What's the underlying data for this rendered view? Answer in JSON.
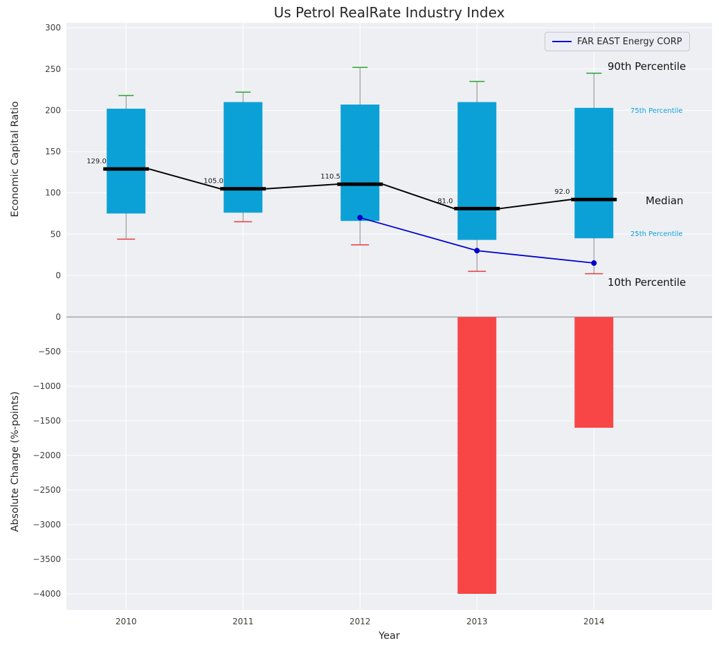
{
  "figure": {
    "plot_bg": "#edeff3",
    "grid_color": "#ffffff",
    "tick_color": "#3b3b3b"
  },
  "legend": {
    "label": "FAR EAST Energy CORP",
    "line_color": "#0000cc"
  },
  "annotations": {
    "p90": "90th Percentile",
    "p75": "75th Percentile",
    "median": "Median",
    "p25": "25th Percentile",
    "p10": "10th Percentile"
  },
  "chart_data": [
    {
      "type": "boxplot",
      "title": "Us Petrol RealRate Industry Index",
      "ylabel": "Economic Capital Ratio",
      "ylim": [
        -42,
        306
      ],
      "yticks": [
        300,
        250,
        200,
        150,
        100,
        50,
        0
      ],
      "grid": true,
      "categories": [
        "2010",
        "2011",
        "2012",
        "2013",
        "2014"
      ],
      "boxes": [
        {
          "year": "2010",
          "p10": 44,
          "p25": 75,
          "median": 129.0,
          "p75": 202,
          "p90": 218
        },
        {
          "year": "2011",
          "p10": 65,
          "p25": 76,
          "median": 105.0,
          "p75": 210,
          "p90": 222
        },
        {
          "year": "2012",
          "p10": 37,
          "p25": 66,
          "median": 110.5,
          "p75": 207,
          "p90": 252
        },
        {
          "year": "2013",
          "p10": 5,
          "p25": 43,
          "median": 81.0,
          "p75": 210,
          "p90": 235
        },
        {
          "year": "2014",
          "p10": 2,
          "p25": 45,
          "median": 92.0,
          "p75": 203,
          "p90": 245
        }
      ],
      "median_labels": [
        "129.0",
        "105.0",
        "110.5",
        "81.0",
        "92.0"
      ],
      "company_line": {
        "name": "FAR EAST Energy CORP",
        "x": [
          "2012",
          "2013",
          "2014"
        ],
        "values": [
          70,
          30,
          15
        ],
        "color": "#0000cc"
      },
      "colors": {
        "box": "#0ca1d6",
        "median": "#000000",
        "whisker": "#888888",
        "cap_top": "#2ca02c",
        "cap_bottom": "#e23b3b"
      },
      "legend_position": "upper right"
    },
    {
      "type": "bar",
      "ylabel": "Absolute Change (%-points)",
      "xlabel": "Year",
      "ylim": [
        -4230,
        100
      ],
      "yticks": [
        0,
        -500,
        -1000,
        -1500,
        -2000,
        -2500,
        -3000,
        -3500,
        -4000
      ],
      "grid": true,
      "categories": [
        "2010",
        "2011",
        "2012",
        "2013",
        "2014"
      ],
      "values": [
        0,
        0,
        0,
        -4000,
        -1600
      ],
      "bar_color": "#f84646",
      "zero_line_color": "#808080"
    }
  ]
}
